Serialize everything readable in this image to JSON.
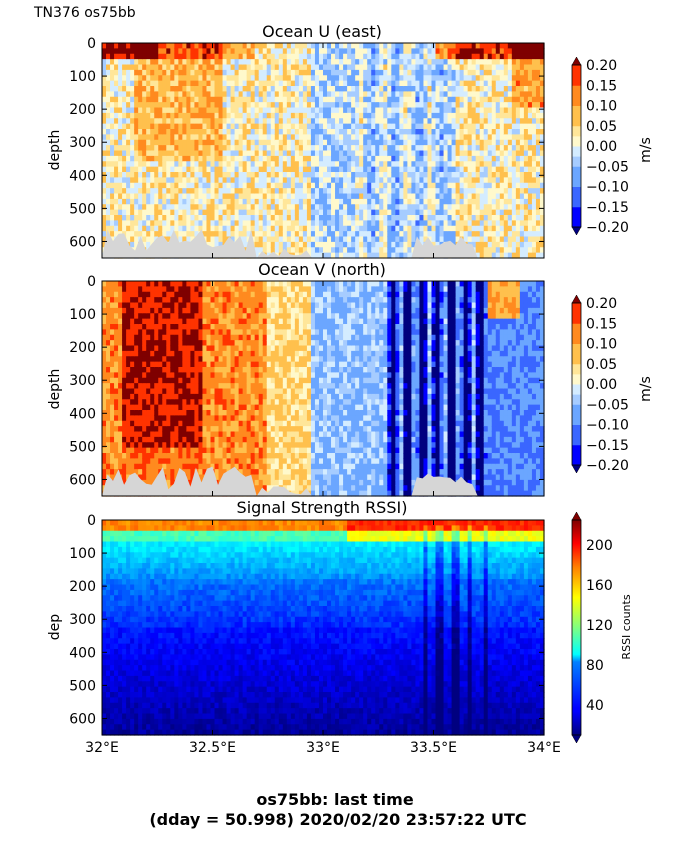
{
  "figure": {
    "corner_label": "TN376 os75bb",
    "footer_line1": "os75bb: last time",
    "footer_line2": "(dday = 50.998) 2020/02/20 23:57:22 UTC"
  },
  "chart_data": [
    {
      "type": "heatmap",
      "title": "Ocean U (east)",
      "ylabel": "depth",
      "xlabel": "",
      "x_range": [
        32.0,
        34.0
      ],
      "y_range": [
        650,
        0
      ],
      "y_ticks": [
        "0",
        "100",
        "200",
        "300",
        "400",
        "500",
        "600"
      ],
      "y_tick_values": [
        0,
        100,
        200,
        300,
        400,
        500,
        600
      ],
      "x_ticks": [
        "32°E",
        "32.5°E",
        "33°E",
        "33.5°E",
        "34°E"
      ],
      "x_tick_values": [
        32.0,
        32.5,
        33.0,
        33.5,
        34.0
      ],
      "colorbar": {
        "label": "m/s",
        "ticks": [
          "0.20",
          "0.15",
          "0.10",
          "0.05",
          "0.00",
          "−0.05",
          "−0.10",
          "−0.15",
          "−0.20"
        ],
        "range": [
          -0.2,
          0.2
        ]
      }
    },
    {
      "type": "heatmap",
      "title": "Ocean V (north)",
      "ylabel": "depth",
      "xlabel": "",
      "x_range": [
        32.0,
        34.0
      ],
      "y_range": [
        650,
        0
      ],
      "y_ticks": [
        "0",
        "100",
        "200",
        "300",
        "400",
        "500",
        "600"
      ],
      "y_tick_values": [
        0,
        100,
        200,
        300,
        400,
        500,
        600
      ],
      "x_ticks": [
        "32°E",
        "32.5°E",
        "33°E",
        "33.5°E",
        "34°E"
      ],
      "x_tick_values": [
        32.0,
        32.5,
        33.0,
        33.5,
        34.0
      ],
      "colorbar": {
        "label": "m/s",
        "ticks": [
          "0.20",
          "0.15",
          "0.10",
          "0.05",
          "0.00",
          "−0.05",
          "−0.10",
          "−0.15",
          "−0.20"
        ],
        "range": [
          -0.2,
          0.2
        ]
      }
    },
    {
      "type": "heatmap",
      "title": "Signal Strength RSSI)",
      "ylabel": "dep",
      "xlabel": "",
      "x_range": [
        32.0,
        34.0
      ],
      "y_range": [
        650,
        0
      ],
      "y_ticks": [
        "0",
        "100",
        "200",
        "300",
        "400",
        "500",
        "600"
      ],
      "y_tick_values": [
        0,
        100,
        200,
        300,
        400,
        500,
        600
      ],
      "x_ticks": [
        "32°E",
        "32.5°E",
        "33°E",
        "33.5°E",
        "34°E"
      ],
      "x_tick_values": [
        32.0,
        32.5,
        33.0,
        33.5,
        34.0
      ],
      "colorbar": {
        "label": "RSSI counts",
        "ticks": [
          "200",
          "160",
          "120",
          "80",
          "40"
        ],
        "tick_values": [
          200,
          160,
          120,
          80,
          40
        ],
        "range": [
          10,
          225
        ]
      }
    }
  ]
}
